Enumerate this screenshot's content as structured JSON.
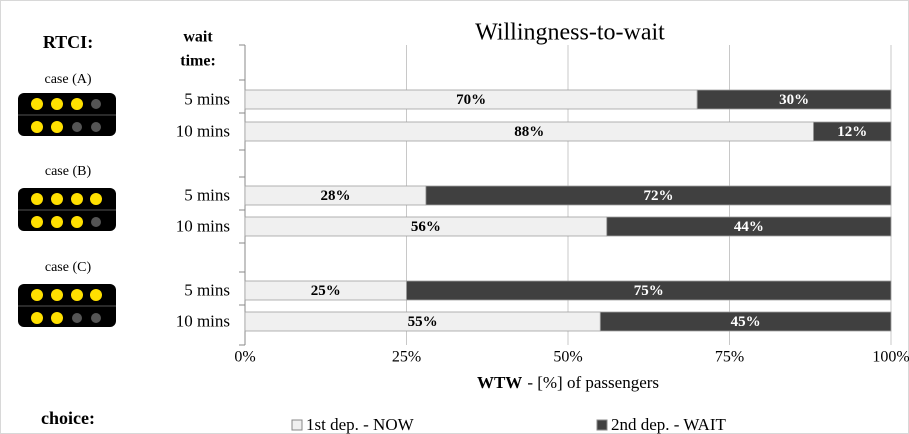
{
  "chart_data": {
    "type": "stacked_bar_horizontal",
    "title": "Willingness-to-wait",
    "row_header": "RTCI:",
    "category_header": [
      "wait",
      "time:"
    ],
    "legend_title": "choice:",
    "groups": [
      "case (A)",
      "case (B)",
      "case (C)"
    ],
    "categories": [
      "5 mins",
      "10 mins",
      "5 mins",
      "10 mins",
      "5 mins",
      "10 mins"
    ],
    "series": [
      {
        "name": "1st dep. - NOW",
        "color": "#f0f0f0",
        "values": [
          70,
          88,
          28,
          56,
          25,
          55
        ],
        "value_labels": [
          "70%",
          "88%",
          "28%",
          "56%",
          "25%",
          "55%"
        ]
      },
      {
        "name": "2nd dep. - WAIT",
        "color": "#404040",
        "values": [
          30,
          12,
          72,
          44,
          75,
          45
        ],
        "value_labels": [
          "30%",
          "12%",
          "72%",
          "44%",
          "75%",
          "45%"
        ]
      }
    ],
    "xlabel": {
      "bold": "WTW",
      "rest": "- [%] of passengers"
    },
    "xlim": [
      0,
      100
    ],
    "xticks": [
      {
        "value": 0,
        "label": "0%"
      },
      {
        "value": 25,
        "label": "25%"
      },
      {
        "value": 50,
        "label": "50%"
      },
      {
        "value": 75,
        "label": "75%"
      },
      {
        "value": 100,
        "label": "100%"
      }
    ],
    "grid": true,
    "legend": "bottom"
  }
}
